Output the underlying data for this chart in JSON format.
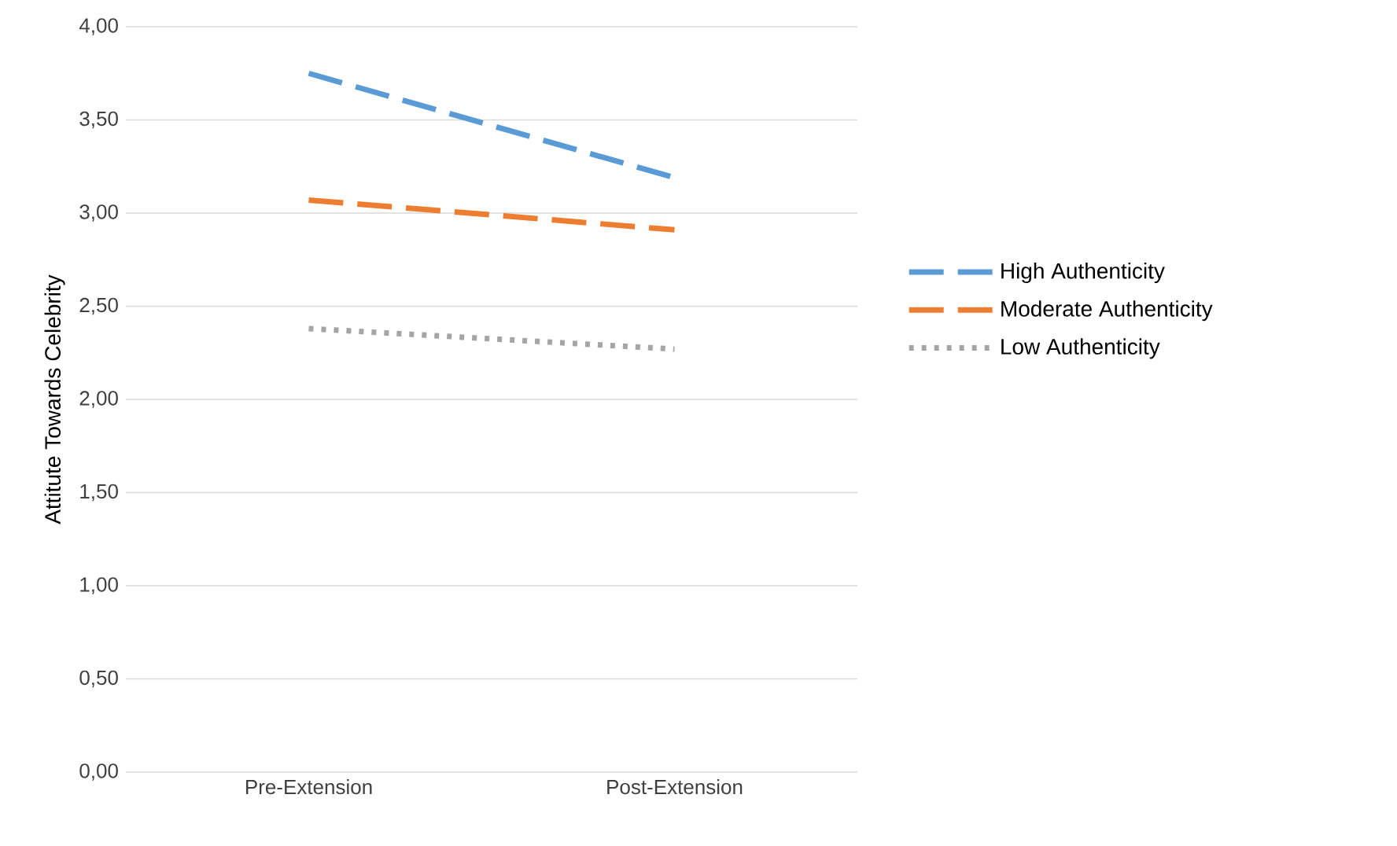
{
  "chart_data": {
    "type": "line",
    "ylabel": "Attitute Towards Celebrity",
    "categories": [
      "Pre-Extension",
      "Post-Extension"
    ],
    "series": [
      {
        "name": "High Authenticity",
        "color": "#5b9bd5",
        "values": [
          3.75,
          3.19
        ],
        "line_style": "dashed"
      },
      {
        "name": "Moderate Authenticity",
        "color": "#ed7d31",
        "values": [
          3.07,
          2.91
        ],
        "line_style": "dashed"
      },
      {
        "name": "Low Authenticity",
        "color": "#a5a5a5",
        "values": [
          2.38,
          2.27
        ],
        "line_style": "dotted"
      }
    ],
    "ylim": [
      0,
      4
    ],
    "yticks": [
      {
        "value": 0,
        "label": "0,00"
      },
      {
        "value": 0.5,
        "label": "0,50"
      },
      {
        "value": 1,
        "label": "1,00"
      },
      {
        "value": 1.5,
        "label": "1,50"
      },
      {
        "value": 2,
        "label": "2,00"
      },
      {
        "value": 2.5,
        "label": "2,50"
      },
      {
        "value": 3,
        "label": "3,00"
      },
      {
        "value": 3.5,
        "label": "3,50"
      },
      {
        "value": 4,
        "label": "4,00"
      }
    ],
    "grid": "y",
    "legend": "right",
    "marker": "none"
  }
}
